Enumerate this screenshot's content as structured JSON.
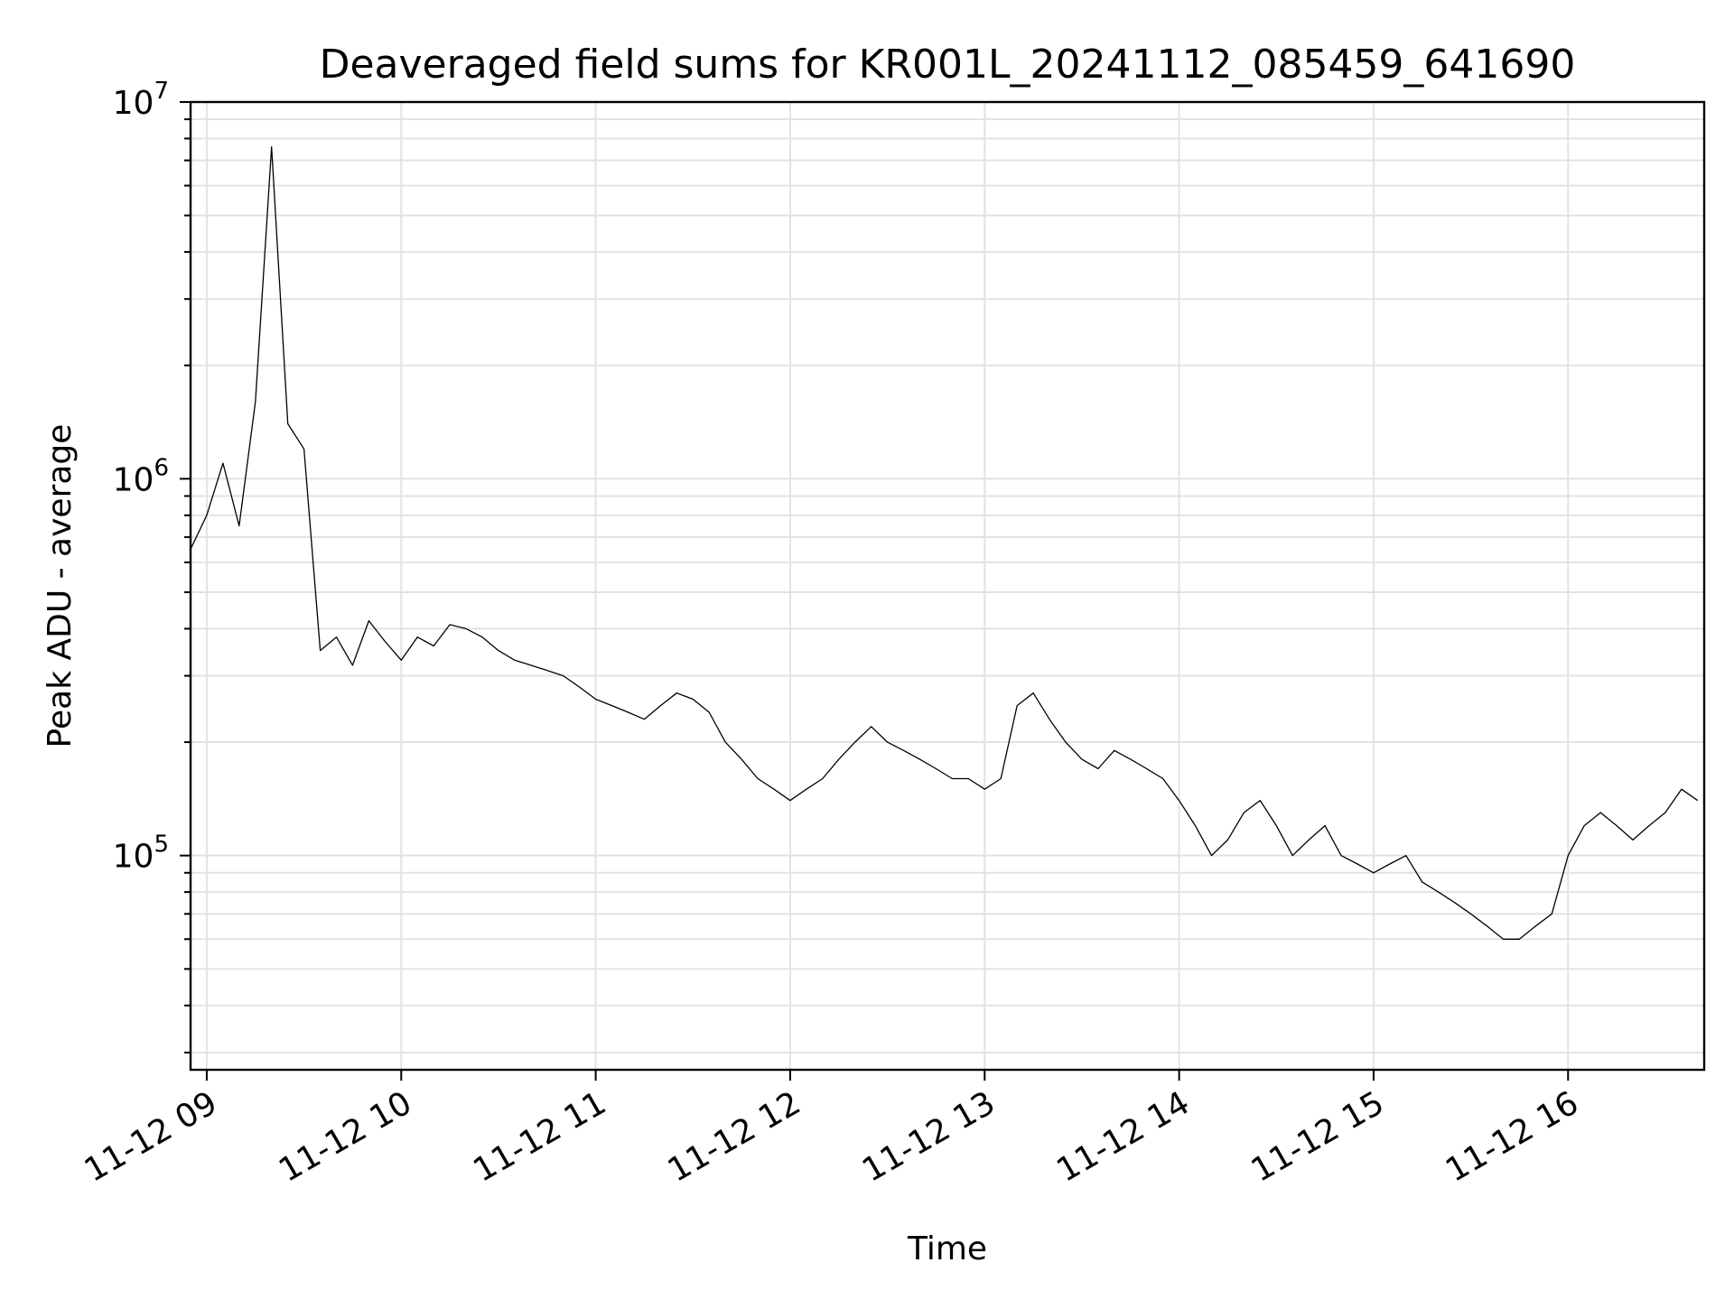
{
  "chart_data": {
    "type": "line",
    "title": "Deaveraged field sums for KR001L_20241112_085459_641690",
    "xlabel": "Time",
    "ylabel": "Peak ADU - average",
    "yscale": "log",
    "ylim": [
      27000,
      10000000
    ],
    "xlim": [
      "2024-11-12 08:55:00",
      "2024-11-12 16:42:00"
    ],
    "x_tick_labels": [
      "11-12 09",
      "11-12 10",
      "11-12 11",
      "11-12 12",
      "11-12 13",
      "11-12 14",
      "11-12 15",
      "11-12 16"
    ],
    "y_tick_labels": [
      {
        "base": "10",
        "exp": "5",
        "value": 100000
      },
      {
        "base": "10",
        "exp": "6",
        "value": 1000000
      },
      {
        "base": "10",
        "exp": "7",
        "value": 10000000
      }
    ],
    "grid": true,
    "series": [
      {
        "x": [
          "2024-11-12 08:55:00",
          "2024-11-12 09:00:00",
          "2024-11-12 09:05:00",
          "2024-11-12 09:10:00",
          "2024-11-12 09:15:00",
          "2024-11-12 09:20:00",
          "2024-11-12 09:25:00",
          "2024-11-12 09:30:00",
          "2024-11-12 09:35:00",
          "2024-11-12 09:40:00",
          "2024-11-12 09:45:00",
          "2024-11-12 09:50:00",
          "2024-11-12 09:55:00",
          "2024-11-12 10:00:00",
          "2024-11-12 10:05:00",
          "2024-11-12 10:10:00",
          "2024-11-12 10:15:00",
          "2024-11-12 10:20:00",
          "2024-11-12 10:25:00",
          "2024-11-12 10:30:00",
          "2024-11-12 10:35:00",
          "2024-11-12 10:40:00",
          "2024-11-12 10:45:00",
          "2024-11-12 10:50:00",
          "2024-11-12 10:55:00",
          "2024-11-12 11:00:00",
          "2024-11-12 11:05:00",
          "2024-11-12 11:10:00",
          "2024-11-12 11:15:00",
          "2024-11-12 11:20:00",
          "2024-11-12 11:25:00",
          "2024-11-12 11:30:00",
          "2024-11-12 11:35:00",
          "2024-11-12 11:40:00",
          "2024-11-12 11:45:00",
          "2024-11-12 11:50:00",
          "2024-11-12 11:55:00",
          "2024-11-12 12:00:00",
          "2024-11-12 12:05:00",
          "2024-11-12 12:10:00",
          "2024-11-12 12:15:00",
          "2024-11-12 12:20:00",
          "2024-11-12 12:25:00",
          "2024-11-12 12:30:00",
          "2024-11-12 12:35:00",
          "2024-11-12 12:40:00",
          "2024-11-12 12:45:00",
          "2024-11-12 12:50:00",
          "2024-11-12 12:55:00",
          "2024-11-12 13:00:00",
          "2024-11-12 13:05:00",
          "2024-11-12 13:10:00",
          "2024-11-12 13:15:00",
          "2024-11-12 13:20:00",
          "2024-11-12 13:25:00",
          "2024-11-12 13:30:00",
          "2024-11-12 13:35:00",
          "2024-11-12 13:40:00",
          "2024-11-12 13:45:00",
          "2024-11-12 13:50:00",
          "2024-11-12 13:55:00",
          "2024-11-12 14:00:00",
          "2024-11-12 14:05:00",
          "2024-11-12 14:10:00",
          "2024-11-12 14:15:00",
          "2024-11-12 14:20:00",
          "2024-11-12 14:25:00",
          "2024-11-12 14:30:00",
          "2024-11-12 14:35:00",
          "2024-11-12 14:40:00",
          "2024-11-12 14:45:00",
          "2024-11-12 14:50:00",
          "2024-11-12 14:55:00",
          "2024-11-12 15:00:00",
          "2024-11-12 15:05:00",
          "2024-11-12 15:10:00",
          "2024-11-12 15:15:00",
          "2024-11-12 15:20:00",
          "2024-11-12 15:25:00",
          "2024-11-12 15:30:00",
          "2024-11-12 15:35:00",
          "2024-11-12 15:40:00",
          "2024-11-12 15:45:00",
          "2024-11-12 15:50:00",
          "2024-11-12 15:55:00",
          "2024-11-12 16:00:00",
          "2024-11-12 16:05:00",
          "2024-11-12 16:10:00",
          "2024-11-12 16:15:00",
          "2024-11-12 16:20:00",
          "2024-11-12 16:25:00",
          "2024-11-12 16:30:00",
          "2024-11-12 16:35:00",
          "2024-11-12 16:40:00"
        ],
        "y": [
          650000,
          800000,
          1100000,
          750000,
          1600000,
          7600000,
          1400000,
          1200000,
          350000,
          380000,
          320000,
          420000,
          370000,
          330000,
          380000,
          360000,
          410000,
          400000,
          380000,
          350000,
          330000,
          320000,
          310000,
          300000,
          280000,
          260000,
          250000,
          240000,
          230000,
          250000,
          270000,
          260000,
          240000,
          200000,
          180000,
          160000,
          150000,
          140000,
          150000,
          160000,
          180000,
          200000,
          220000,
          200000,
          190000,
          180000,
          170000,
          160000,
          160000,
          150000,
          160000,
          250000,
          270000,
          230000,
          200000,
          180000,
          170000,
          190000,
          180000,
          170000,
          160000,
          140000,
          120000,
          100000,
          110000,
          130000,
          140000,
          120000,
          100000,
          110000,
          120000,
          100000,
          95000,
          90000,
          95000,
          100000,
          85000,
          80000,
          75000,
          70000,
          65000,
          60000,
          60000,
          65000,
          70000,
          100000,
          120000,
          130000,
          120000,
          110000,
          120000,
          130000,
          150000,
          140000
        ]
      }
    ]
  }
}
